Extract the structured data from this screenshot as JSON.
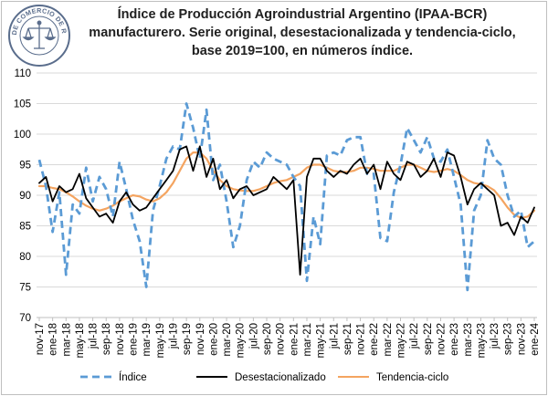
{
  "title": {
    "line1": "Índice de Producción Agroindustrial Argentino (IPAA-BCR)",
    "line2": "manufacturero. Serie original, desestacionalizada y tendencia-ciclo,",
    "line3": "base 2019=100, en números índice."
  },
  "logo": {
    "text": "BOLSA DE COMERCIO DE ROSARIO",
    "icon": "scales-of-justice-icon",
    "color": "#5a6d8c"
  },
  "chart_data": {
    "type": "line",
    "ylim": [
      70,
      110
    ],
    "yticks": [
      70,
      75,
      80,
      85,
      90,
      95,
      100,
      105,
      110
    ],
    "x_tick_labels": [
      "nov-17",
      "ene-18",
      "mar-18",
      "may-18",
      "jul-18",
      "sep-18",
      "nov-18",
      "ene-19",
      "mar-19",
      "may-19",
      "jul-19",
      "sep-19",
      "nov-19",
      "ene-20",
      "mar-20",
      "may-20",
      "jul-20",
      "sep-20",
      "nov-20",
      "ene-21",
      "mar-21",
      "may-21",
      "jul-21",
      "sep-21",
      "nov-21",
      "ene-22",
      "mar-22",
      "may-22",
      "jul-22",
      "sep-22",
      "nov-22",
      "ene-23",
      "mar-23",
      "may-23",
      "jul-23",
      "sep-23",
      "nov-23",
      "ene-24"
    ],
    "months": 75,
    "grid": true,
    "legend_position": "bottom",
    "series": [
      {
        "name": "Índice",
        "color": "#5b9bd5",
        "style": "dashed",
        "values": [
          95.8,
          91.5,
          84.0,
          90.5,
          77.0,
          88.5,
          87.0,
          94.5,
          89.0,
          93.0,
          91.0,
          86.5,
          95.5,
          91.0,
          86.0,
          82.5,
          75.0,
          87.5,
          91.5,
          96.0,
          98.0,
          97.5,
          105.0,
          101.0,
          96.0,
          104.0,
          92.5,
          95.0,
          89.0,
          81.5,
          85.0,
          92.5,
          95.5,
          94.5,
          97.0,
          96.0,
          95.5,
          95.0,
          93.0,
          91.5,
          76.0,
          86.5,
          82.0,
          96.5,
          97.0,
          96.5,
          99.0,
          99.5,
          99.5,
          93.5,
          93.5,
          83.0,
          82.5,
          90.5,
          95.0,
          101.0,
          99.0,
          97.0,
          99.5,
          96.0,
          95.5,
          97.5,
          93.0,
          88.5,
          74.5,
          87.5,
          90.0,
          99.0,
          96.0,
          95.0,
          90.0,
          86.5,
          87.5,
          81.5,
          82.5
        ]
      },
      {
        "name": "Desestacionalizado",
        "color": "#000000",
        "style": "solid",
        "values": [
          92.0,
          93.0,
          89.0,
          91.5,
          90.5,
          91.0,
          93.5,
          89.5,
          88.0,
          86.5,
          87.0,
          85.5,
          89.0,
          90.5,
          88.5,
          87.5,
          88.0,
          89.5,
          91.0,
          92.5,
          94.0,
          97.5,
          98.0,
          94.0,
          98.0,
          93.0,
          96.0,
          91.0,
          92.5,
          89.5,
          91.0,
          91.5,
          90.0,
          90.5,
          91.0,
          93.0,
          92.0,
          91.0,
          92.5,
          77.0,
          93.0,
          96.0,
          96.0,
          94.0,
          93.0,
          94.0,
          93.5,
          95.0,
          96.0,
          93.5,
          95.0,
          91.0,
          95.5,
          93.5,
          92.5,
          95.5,
          95.0,
          93.0,
          94.0,
          96.0,
          93.0,
          97.0,
          96.5,
          93.0,
          88.5,
          91.0,
          92.0,
          91.0,
          90.0,
          85.0,
          85.5,
          83.5,
          86.5,
          85.5,
          88.0
        ]
      },
      {
        "name": "Tendencia-ciclo",
        "color": "#f4a460",
        "style": "solid",
        "values": [
          91.5,
          91.5,
          91.2,
          91.0,
          90.5,
          89.8,
          89.0,
          88.3,
          87.8,
          87.5,
          87.8,
          88.3,
          89.0,
          89.5,
          90.0,
          89.8,
          89.3,
          89.0,
          89.5,
          90.5,
          92.0,
          94.0,
          96.0,
          97.0,
          97.0,
          96.0,
          94.0,
          92.5,
          91.5,
          91.0,
          90.8,
          90.7,
          90.7,
          91.0,
          91.5,
          92.0,
          92.3,
          92.5,
          93.0,
          93.5,
          94.5,
          95.0,
          95.0,
          94.5,
          94.0,
          93.8,
          93.8,
          94.0,
          94.5,
          94.5,
          94.3,
          94.0,
          94.0,
          94.0,
          94.5,
          95.0,
          95.0,
          94.5,
          94.0,
          93.8,
          94.0,
          94.3,
          94.0,
          93.3,
          92.5,
          92.0,
          91.8,
          91.5,
          90.8,
          89.5,
          88.0,
          86.8,
          86.3,
          86.5,
          87.5
        ]
      }
    ]
  }
}
